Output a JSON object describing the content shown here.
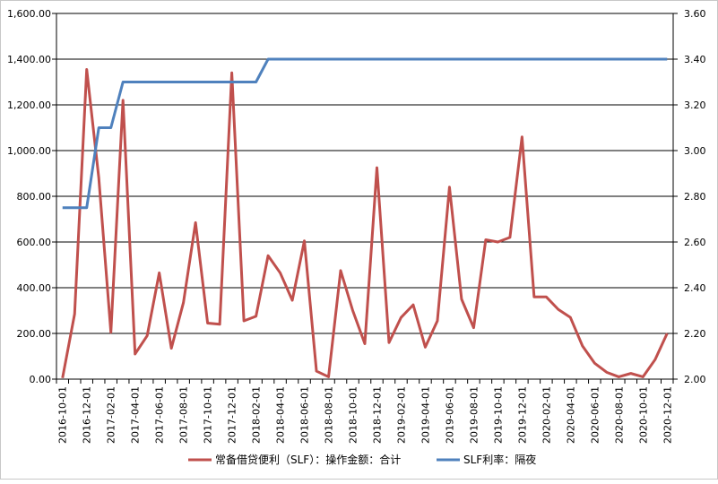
{
  "chart_data": {
    "type": "line",
    "title": "",
    "x": [
      "2016-10-01",
      "2016-11-01",
      "2016-12-01",
      "2017-01-01",
      "2017-02-01",
      "2017-03-01",
      "2017-04-01",
      "2017-05-01",
      "2017-06-01",
      "2017-07-01",
      "2017-08-01",
      "2017-09-01",
      "2017-10-01",
      "2017-11-01",
      "2017-12-01",
      "2018-01-01",
      "2018-02-01",
      "2018-03-01",
      "2018-04-01",
      "2018-05-01",
      "2018-06-01",
      "2018-07-01",
      "2018-08-01",
      "2018-09-01",
      "2018-10-01",
      "2018-11-01",
      "2018-12-01",
      "2019-01-01",
      "2019-02-01",
      "2019-03-01",
      "2019-04-01",
      "2019-05-01",
      "2019-06-01",
      "2019-07-01",
      "2019-08-01",
      "2019-09-01",
      "2019-10-01",
      "2019-11-01",
      "2019-12-01",
      "2020-01-01",
      "2020-02-01",
      "2020-03-01",
      "2020-04-01",
      "2020-05-01",
      "2020-06-01",
      "2020-07-01",
      "2020-08-01",
      "2020-09-01",
      "2020-10-01",
      "2020-11-01",
      "2020-12-01"
    ],
    "x_tick_labels": [
      "2016-10-01",
      "2016-12-01",
      "2017-02-01",
      "2017-04-01",
      "2017-06-01",
      "2017-08-01",
      "2017-10-01",
      "2017-12-01",
      "2018-02-01",
      "2018-04-01",
      "2018-06-01",
      "2018-08-01",
      "2018-10-01",
      "2018-12-01",
      "2019-02-01",
      "2019-04-01",
      "2019-06-01",
      "2019-08-01",
      "2019-10-01",
      "2019-12-01",
      "2020-02-01",
      "2020-04-01",
      "2020-06-01",
      "2020-08-01",
      "2020-10-01",
      "2020-12-01"
    ],
    "y_left": {
      "ylim": [
        0,
        1600
      ],
      "ticks": [
        "0.00",
        "200.00",
        "400.00",
        "600.00",
        "800.00",
        "1,000.00",
        "1,200.00",
        "1,400.00",
        "1,600.00"
      ]
    },
    "y_right": {
      "ylim": [
        2.0,
        3.6
      ],
      "ticks": [
        "2.00",
        "2.20",
        "2.40",
        "2.60",
        "2.80",
        "3.00",
        "3.20",
        "3.40",
        "3.60"
      ]
    },
    "grid": true,
    "legend_position": "bottom",
    "series": [
      {
        "name": "常备借贷便利（SLF）：操作金额：合计",
        "axis": "left",
        "color": "#c0504d",
        "values": [
          5,
          285,
          1355,
          880,
          205,
          1220,
          110,
          190,
          465,
          135,
          335,
          685,
          245,
          240,
          1340,
          255,
          275,
          540,
          465,
          345,
          605,
          35,
          10,
          475,
          300,
          155,
          925,
          160,
          270,
          325,
          140,
          255,
          840,
          350,
          225,
          610,
          600,
          620,
          1060,
          360,
          360,
          305,
          270,
          145,
          70,
          30,
          10,
          25,
          10,
          85,
          200
        ]
      },
      {
        "name": "SLF利率：隔夜",
        "axis": "right",
        "color": "#4f81bd",
        "values": [
          2.75,
          2.75,
          2.75,
          3.1,
          3.1,
          3.3,
          3.3,
          3.3,
          3.3,
          3.3,
          3.3,
          3.3,
          3.3,
          3.3,
          3.3,
          3.3,
          3.3,
          3.4,
          3.4,
          3.4,
          3.4,
          3.4,
          3.4,
          3.4,
          3.4,
          3.4,
          3.4,
          3.4,
          3.4,
          3.4,
          3.4,
          3.4,
          3.4,
          3.4,
          3.4,
          3.4,
          3.4,
          3.4,
          3.4,
          3.4,
          3.4,
          3.4,
          3.4,
          3.4,
          3.4,
          3.4,
          3.4,
          3.4,
          3.4,
          3.4,
          3.4
        ]
      }
    ]
  }
}
